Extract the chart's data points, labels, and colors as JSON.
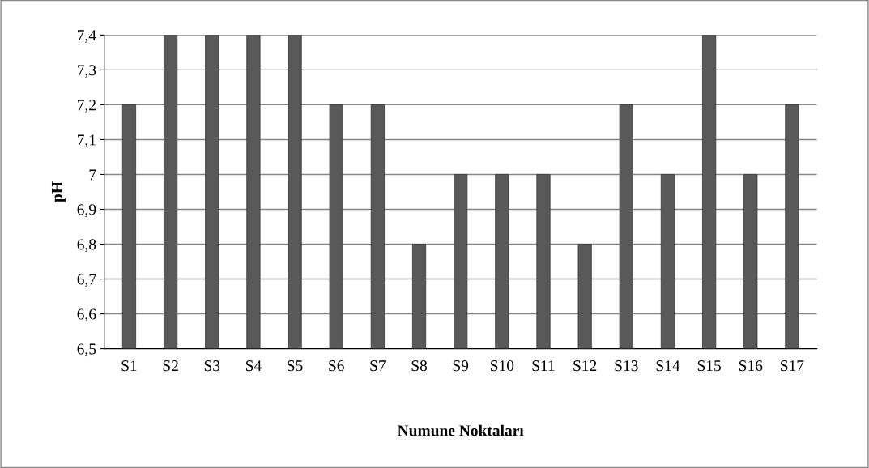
{
  "chart_data": {
    "type": "bar",
    "xlabel": "Numune Noktaları",
    "ylabel": "pH",
    "categories": [
      "S1",
      "S2",
      "S3",
      "S4",
      "S5",
      "S6",
      "S7",
      "S8",
      "S9",
      "S10",
      "S11",
      "S12",
      "S13",
      "S14",
      "S15",
      "S16",
      "S17"
    ],
    "values": [
      7.2,
      7.4,
      7.4,
      7.4,
      7.4,
      7.2,
      7.2,
      6.8,
      7.0,
      7.0,
      7.0,
      6.8,
      7.2,
      7.0,
      7.4,
      7.0,
      7.2
    ],
    "color": "#595959",
    "ylim": [
      6.5,
      7.4
    ],
    "yticks": [
      {
        "value": 6.5,
        "label": "6,5"
      },
      {
        "value": 6.6,
        "label": "6,6"
      },
      {
        "value": 6.7,
        "label": "6,7"
      },
      {
        "value": 6.8,
        "label": "6,8"
      },
      {
        "value": 6.9,
        "label": "6,9"
      },
      7,
      {
        "value": 7.1,
        "label": "7,1"
      },
      {
        "value": 7.2,
        "label": "7,2"
      },
      {
        "value": 7.3,
        "label": "7,3"
      },
      {
        "value": 7.4,
        "label": "7,4"
      }
    ],
    "grid": "y",
    "legend": false
  }
}
